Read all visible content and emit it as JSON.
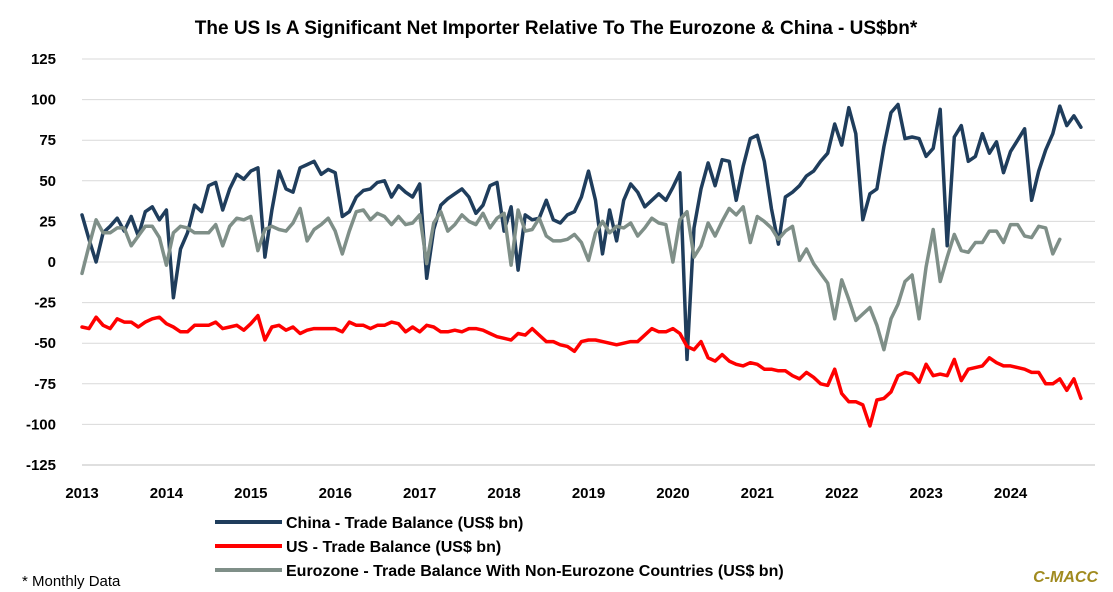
{
  "chart_data": {
    "type": "line",
    "title": "The US Is A Significant Net Importer Relative To The Eurozone & China - US$bn*",
    "xlabel": "",
    "ylabel": "",
    "ylim": [
      -125,
      125
    ],
    "yticks": [
      125,
      100,
      75,
      50,
      25,
      0,
      -25,
      -50,
      -75,
      -100,
      -125
    ],
    "xlim": [
      2013,
      2025
    ],
    "xticks": [
      2013,
      2014,
      2015,
      2016,
      2017,
      2018,
      2019,
      2020,
      2021,
      2022,
      2023,
      2024
    ],
    "grid": "horizontal",
    "legend_position": "bottom",
    "footnote": "* Monthly Data",
    "brand": "C-MACC",
    "colors": {
      "china": "#1f3d5c",
      "us": "#ff0000",
      "eurozone": "#7f8f88",
      "grid": "#d9d9d9",
      "brand": "#a08a1e"
    },
    "series": [
      {
        "key": "china",
        "name": "China - Trade Balance (US$ bn)",
        "start": 2013.0,
        "step": 0.08333,
        "values": [
          29,
          14,
          0,
          18,
          22,
          27,
          19,
          28,
          16,
          31,
          34,
          26,
          32,
          -22,
          8,
          18,
          35,
          31,
          47,
          49,
          32,
          45,
          54,
          51,
          56,
          58,
          3,
          32,
          56,
          45,
          43,
          58,
          60,
          62,
          54,
          57,
          55,
          28,
          31,
          40,
          44,
          45,
          49,
          50,
          40,
          47,
          43,
          40,
          48,
          -10,
          20,
          35,
          39,
          42,
          45,
          40,
          30,
          35,
          47,
          49,
          19,
          34,
          -5,
          29,
          26,
          27,
          38,
          26,
          24,
          29,
          31,
          40,
          56,
          38,
          5,
          32,
          13,
          38,
          48,
          43,
          34,
          38,
          42,
          38,
          46,
          55,
          -60,
          21,
          45,
          61,
          47,
          63,
          62,
          38,
          59,
          76,
          78,
          62,
          33,
          11,
          40,
          43,
          47,
          53,
          56,
          62,
          67,
          85,
          72,
          95,
          79,
          26,
          42,
          45,
          71,
          92,
          97,
          76,
          77,
          76,
          65,
          70,
          94,
          10,
          77,
          84,
          62,
          65,
          79,
          67,
          74,
          55,
          68,
          75,
          82,
          38,
          56,
          69,
          79,
          96,
          84,
          90,
          83
        ]
      },
      {
        "key": "us",
        "name": "US - Trade Balance (US$ bn)",
        "start": 2013.0,
        "step": 0.08333,
        "values": [
          -40,
          -41,
          -34,
          -39,
          -41,
          -35,
          -37,
          -37,
          -40,
          -37,
          -35,
          -34,
          -38,
          -40,
          -43,
          -43,
          -39,
          -39,
          -39,
          -37,
          -41,
          -40,
          -39,
          -42,
          -38,
          -33,
          -48,
          -40,
          -39,
          -42,
          -40,
          -44,
          -42,
          -41,
          -41,
          -41,
          -41,
          -43,
          -37,
          -39,
          -39,
          -41,
          -39,
          -39,
          -37,
          -38,
          -43,
          -40,
          -43,
          -39,
          -40,
          -43,
          -43,
          -42,
          -43,
          -41,
          -41,
          -42,
          -44,
          -46,
          -47,
          -48,
          -44,
          -45,
          -41,
          -45,
          -49,
          -49,
          -51,
          -52,
          -55,
          -49,
          -48,
          -48,
          -49,
          -50,
          -51,
          -50,
          -49,
          -49,
          -45,
          -41,
          -43,
          -43,
          -41,
          -44,
          -52,
          -54,
          -49,
          -59,
          -61,
          -57,
          -61,
          -63,
          -64,
          -62,
          -63,
          -66,
          -66,
          -67,
          -67,
          -70,
          -72,
          -68,
          -71,
          -75,
          -76,
          -66,
          -81,
          -86,
          -86,
          -88,
          -101,
          -85,
          -84,
          -80,
          -70,
          -68,
          -69,
          -74,
          -63,
          -70,
          -69,
          -70,
          -60,
          -73,
          -66,
          -65,
          -64,
          -59,
          -62,
          -64,
          -64,
          -65,
          -66,
          -68,
          -68,
          -75,
          -75,
          -72,
          -79,
          -72,
          -84
        ]
      },
      {
        "key": "eurozone",
        "name": "Eurozone - Trade Balance With Non-Eurozone Countries (US$ bn)",
        "start": 2013.0,
        "step": 0.08333,
        "values": [
          -7,
          10,
          26,
          18,
          18,
          21,
          21,
          10,
          16,
          22,
          22,
          15,
          -2,
          18,
          22,
          21,
          18,
          18,
          18,
          23,
          10,
          22,
          27,
          26,
          28,
          7,
          20,
          22,
          20,
          19,
          24,
          33,
          13,
          20,
          23,
          27,
          19,
          5,
          19,
          31,
          32,
          26,
          30,
          28,
          23,
          28,
          23,
          24,
          29,
          -1,
          24,
          31,
          19,
          23,
          29,
          25,
          23,
          30,
          21,
          27,
          30,
          -2,
          32,
          19,
          20,
          27,
          16,
          13,
          13,
          14,
          17,
          12,
          1,
          18,
          25,
          18,
          22,
          21,
          24,
          16,
          21,
          27,
          24,
          23,
          0,
          26,
          31,
          3,
          10,
          24,
          16,
          25,
          33,
          29,
          34,
          12,
          28,
          25,
          21,
          14,
          19,
          22,
          1,
          8,
          -1,
          -7,
          -13,
          -35,
          -11,
          -23,
          -36,
          -32,
          -28,
          -39,
          -54,
          -35,
          -26,
          -12,
          -8,
          -35,
          -3,
          20,
          -12,
          3,
          17,
          7,
          6,
          12,
          12,
          19,
          19,
          12,
          23,
          23,
          16,
          15,
          22,
          21,
          5,
          14
        ]
      }
    ]
  }
}
